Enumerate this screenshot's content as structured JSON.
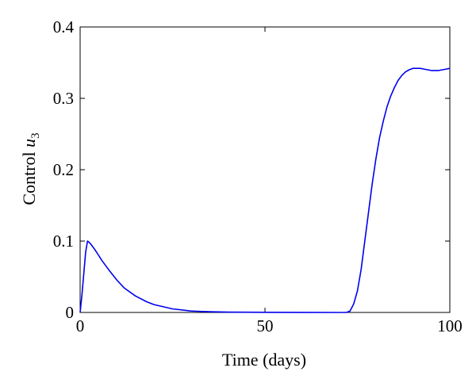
{
  "chart_data": {
    "type": "line",
    "xlabel": "Time (days)",
    "ylabel_prefix": "Control ",
    "ylabel_var": "u",
    "ylabel_sub": "3",
    "xlim": [
      0,
      100
    ],
    "ylim": [
      0,
      0.4
    ],
    "grid": false,
    "xticks": [
      0,
      50,
      100
    ],
    "xtick_labels": [
      "0",
      "50",
      "100"
    ],
    "yticks": [
      0,
      0.1,
      0.2,
      0.3,
      0.4
    ],
    "ytick_labels": [
      "0",
      "0.1",
      "0.2",
      "0.3",
      "0.4"
    ],
    "series": [
      {
        "color": "#0000ee",
        "x": [
          0,
          0.5,
          1,
          1.5,
          2,
          2.5,
          3,
          4,
          5,
          6,
          8,
          10,
          12,
          15,
          18,
          20,
          25,
          30,
          35,
          40,
          50,
          60,
          70,
          72,
          73,
          74,
          75,
          76,
          77,
          78,
          79,
          80,
          81,
          82,
          83,
          84,
          85,
          86,
          87,
          88,
          89,
          90,
          91,
          92,
          93,
          94,
          95,
          96,
          97,
          98,
          99,
          100
        ],
        "y": [
          0,
          0.025,
          0.055,
          0.085,
          0.1,
          0.098,
          0.095,
          0.088,
          0.08,
          0.072,
          0.058,
          0.045,
          0.034,
          0.023,
          0.015,
          0.011,
          0.005,
          0.002,
          0.001,
          0.0005,
          0.0002,
          0.0001,
          0,
          0,
          0.002,
          0.012,
          0.03,
          0.06,
          0.1,
          0.14,
          0.18,
          0.215,
          0.245,
          0.268,
          0.288,
          0.303,
          0.315,
          0.325,
          0.332,
          0.337,
          0.34,
          0.342,
          0.342,
          0.342,
          0.341,
          0.34,
          0.339,
          0.339,
          0.339,
          0.34,
          0.341,
          0.342
        ]
      }
    ]
  }
}
